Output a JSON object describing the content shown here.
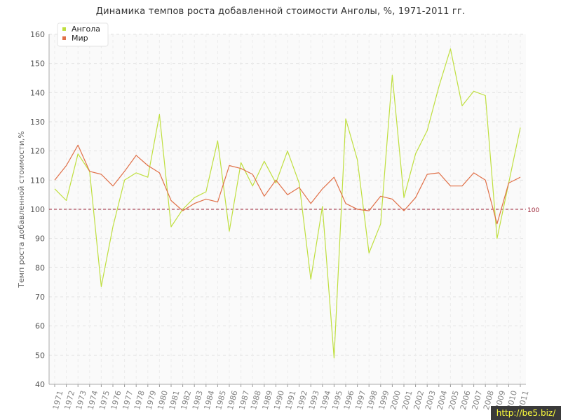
{
  "chart_data": {
    "type": "line",
    "title": "Динамика темпов роста добавленной стоимости Анголы, %, 1971-2011 гг.",
    "ylabel": "Темп роста добавленной стоимости,%",
    "xlabel": "",
    "ylim": [
      40,
      160
    ],
    "y_ticks": [
      40,
      50,
      60,
      70,
      80,
      90,
      100,
      110,
      120,
      130,
      140,
      150,
      160
    ],
    "grid": true,
    "legend_position": "top-left",
    "x": [
      "1971",
      "1972",
      "1973",
      "1974",
      "1975",
      "1976",
      "1977",
      "1978",
      "1979",
      "1980",
      "1981",
      "1982",
      "1983",
      "1984",
      "1985",
      "1986",
      "1987",
      "1988",
      "1989",
      "1990",
      "1991",
      "1992",
      "1993",
      "1994",
      "1995",
      "1996",
      "1997",
      "1998",
      "1999",
      "2000",
      "2001",
      "2002",
      "2003",
      "2004",
      "2005",
      "2006",
      "2007",
      "2008",
      "2009",
      "2010",
      "2011"
    ],
    "series": [
      {
        "name": "Ангола",
        "color": "#bfdf3f",
        "values": [
          107,
          103,
          119,
          113,
          73.5,
          94,
          110,
          112.5,
          111,
          132.5,
          94,
          100,
          104,
          106,
          123.5,
          92.5,
          116,
          108,
          116.5,
          109,
          120,
          109,
          76,
          101,
          49,
          131,
          117,
          85,
          95,
          146,
          104,
          119,
          127,
          142,
          155,
          135.5,
          140.5,
          139,
          90,
          109,
          128
        ]
      },
      {
        "name": "Мир",
        "color": "#e07048",
        "values": [
          110,
          115,
          122,
          113,
          112,
          108,
          113,
          118.5,
          115,
          112.5,
          103,
          99.5,
          102,
          103.5,
          102.5,
          115,
          114,
          112,
          104.5,
          110,
          105,
          107.5,
          102,
          107,
          111,
          102,
          100,
          99.5,
          104.5,
          103.5,
          99.5,
          104,
          112,
          112.5,
          108,
          108,
          112.5,
          110,
          95,
          109,
          111
        ]
      }
    ],
    "reference_line": {
      "value": 100,
      "label": "100",
      "color": "#9b2335"
    }
  },
  "watermark": "http://be5.biz/"
}
